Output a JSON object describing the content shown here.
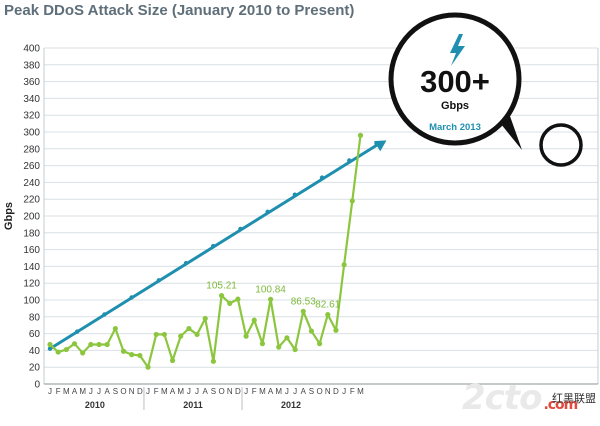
{
  "chart_data": {
    "type": "line",
    "title": "Peak DDoS Attack Size (January 2010 to Present)",
    "ylabel": "Gbps",
    "xlabel": "",
    "ylim": [
      0,
      400
    ],
    "yticks": [
      0,
      20,
      40,
      60,
      80,
      100,
      120,
      140,
      160,
      180,
      200,
      220,
      240,
      260,
      280,
      300,
      320,
      340,
      360,
      380,
      400
    ],
    "grid": true,
    "categories": [
      "J",
      "F",
      "M",
      "A",
      "M",
      "J",
      "J",
      "A",
      "S",
      "O",
      "N",
      "D",
      "J",
      "F",
      "M",
      "A",
      "M",
      "J",
      "J",
      "A",
      "S",
      "O",
      "N",
      "D",
      "J",
      "F",
      "M",
      "A",
      "M",
      "J",
      "J",
      "A",
      "S",
      "O",
      "N",
      "D",
      "J",
      "F",
      "M"
    ],
    "year_labels": [
      "2010",
      "2011",
      "2012"
    ],
    "series": [
      {
        "color": "#8cc63f",
        "values": [
          47,
          38,
          41,
          48,
          37,
          47,
          47,
          47,
          66,
          39,
          35,
          34,
          20,
          59,
          59,
          28,
          57,
          66,
          59,
          78,
          27,
          105.21,
          96,
          101,
          57,
          76,
          48,
          100.84,
          44,
          55,
          41,
          86.53,
          63,
          48,
          82.61,
          64,
          142,
          218,
          296
        ]
      },
      {
        "color": "#1e8fae",
        "type": "trend",
        "values_start": 42,
        "values_end": 290
      }
    ],
    "data_labels": [
      {
        "index": 21,
        "text": "105.21"
      },
      {
        "index": 27,
        "text": "100.84"
      },
      {
        "index": 31,
        "text": "86.53"
      },
      {
        "index": 34,
        "text": "82.61"
      }
    ],
    "callout": {
      "value": "300+",
      "unit": "Gbps",
      "date": "March 2013",
      "icon": "lightning-bolt-icon",
      "accent": "#1e8fae"
    }
  },
  "watermark": {
    "brand": "2cto",
    "suffix": ".com",
    "chinese": "红黑联盟"
  }
}
